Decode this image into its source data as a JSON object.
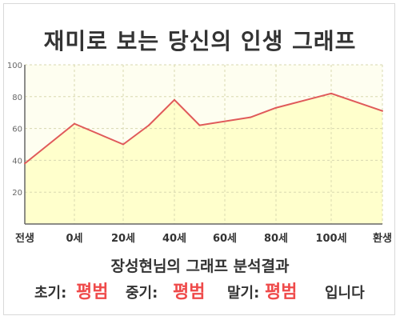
{
  "title": "재미로 보는 당신의 인생 그래프",
  "chart_data": {
    "type": "area",
    "title": "재미로 보는 당신의 인생 그래프",
    "x_labels": [
      "전생",
      "0세",
      "20세",
      "40세",
      "60세",
      "80세",
      "100세",
      "환생"
    ],
    "x": [
      "전생",
      "0세",
      "20세",
      "30세",
      "40세",
      "50세",
      "70세",
      "80세",
      "100세",
      "환생"
    ],
    "y": [
      38,
      63,
      50,
      62,
      78,
      62,
      67,
      73,
      82,
      71
    ],
    "ylim": [
      0,
      100
    ],
    "yticks": [
      20,
      40,
      60,
      80,
      100
    ],
    "grid": true,
    "line_color": "#e05a5a",
    "fill_color": "#ffffcc",
    "background_color": "#fefef0"
  },
  "summary": {
    "line1": "장성현님의 그래프 분석결과",
    "stages": [
      {
        "label": "초기:",
        "value": "평범"
      },
      {
        "label": "중기:",
        "value": "평범"
      },
      {
        "label": "말기:",
        "value": "평범"
      }
    ],
    "outro": "입니다"
  }
}
